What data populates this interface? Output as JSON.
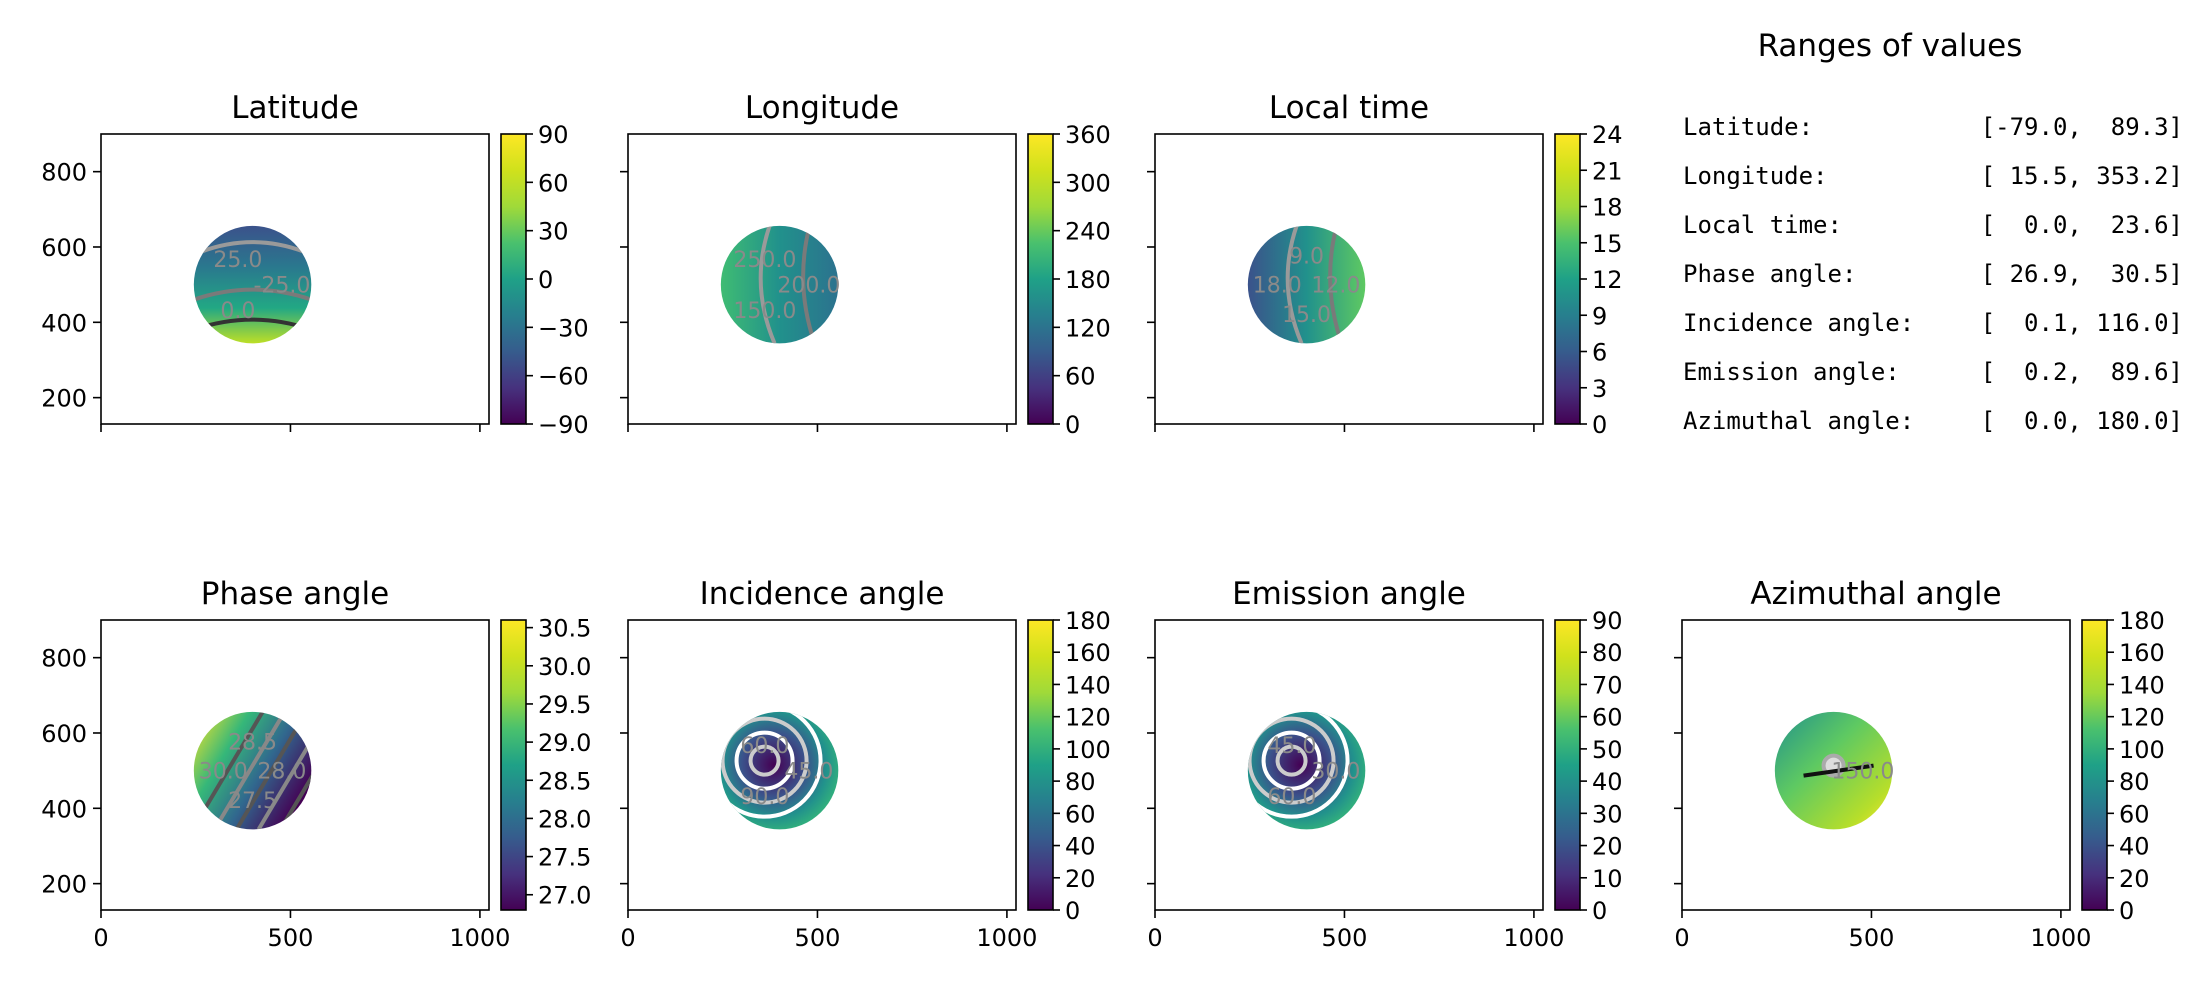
{
  "ranges": {
    "title": "Ranges of values",
    "rows": [
      {
        "label": "Latitude:",
        "value": "[-79.0,  89.3]"
      },
      {
        "label": "Longitude:",
        "value": "[ 15.5, 353.2]"
      },
      {
        "label": "Local time:",
        "value": "[  0.0,  23.6]"
      },
      {
        "label": "Phase angle:",
        "value": "[ 26.9,  30.5]"
      },
      {
        "label": "Incidence angle:",
        "value": "[  0.1, 116.0]"
      },
      {
        "label": "Emission angle:",
        "value": "[  0.2,  89.6]"
      },
      {
        "label": "Azimuthal angle:",
        "value": "[  0.0, 180.0]"
      }
    ]
  },
  "chart_data": [
    {
      "type": "heatmap",
      "title": "Latitude",
      "xlim": [
        0,
        1024
      ],
      "ylim": [
        130,
        900
      ],
      "xticks": [
        0,
        500,
        1000
      ],
      "yticks": [
        200,
        400,
        600,
        800
      ],
      "colormap": "viridis",
      "colorbar": {
        "range": [
          -90,
          90
        ],
        "ticks": [
          "90",
          "60",
          "30",
          "0",
          "−30",
          "−60",
          "−90"
        ]
      },
      "disk": {
        "cx": 400,
        "cy": 500,
        "r": 155
      },
      "contour_labels": [
        "-25.0",
        "0.0",
        "25.0"
      ]
    },
    {
      "type": "heatmap",
      "title": "Longitude",
      "xlim": [
        0,
        1024
      ],
      "ylim": [
        130,
        900
      ],
      "xticks": [
        0,
        500,
        1000
      ],
      "yticks": [
        200,
        400,
        600,
        800
      ],
      "colormap": "viridis",
      "colorbar": {
        "range": [
          0,
          360
        ],
        "ticks": [
          "360",
          "300",
          "240",
          "180",
          "120",
          "60",
          "0"
        ]
      },
      "disk": {
        "cx": 400,
        "cy": 500,
        "r": 155
      },
      "contour_labels": [
        "200.0",
        "150.0",
        "250.0"
      ]
    },
    {
      "type": "heatmap",
      "title": "Local time",
      "xlim": [
        0,
        1024
      ],
      "ylim": [
        130,
        900
      ],
      "xticks": [
        0,
        500,
        1000
      ],
      "yticks": [
        200,
        400,
        600,
        800
      ],
      "colormap": "viridis",
      "colorbar": {
        "range": [
          0,
          24
        ],
        "ticks": [
          "24",
          "21",
          "18",
          "15",
          "12",
          "9",
          "6",
          "3",
          "0"
        ]
      },
      "disk": {
        "cx": 400,
        "cy": 500,
        "r": 155
      },
      "contour_labels": [
        "12.0",
        "15.0",
        "18.0",
        "9.0"
      ]
    },
    {
      "type": "heatmap",
      "title": "Phase angle",
      "xlim": [
        0,
        1024
      ],
      "ylim": [
        130,
        900
      ],
      "xticks": [
        0,
        500,
        1000
      ],
      "yticks": [
        200,
        400,
        600,
        800
      ],
      "colormap": "viridis",
      "colorbar": {
        "range": [
          26.8,
          30.6
        ],
        "ticks": [
          "30.5",
          "30.0",
          "29.5",
          "29.0",
          "28.5",
          "28.0",
          "27.5",
          "27.0"
        ]
      },
      "disk": {
        "cx": 400,
        "cy": 500,
        "r": 155
      },
      "contour_labels": [
        "28.0",
        "27.5",
        "30.0",
        "28.5"
      ]
    },
    {
      "type": "heatmap",
      "title": "Incidence angle",
      "xlim": [
        0,
        1024
      ],
      "ylim": [
        130,
        900
      ],
      "xticks": [
        0,
        500,
        1000
      ],
      "yticks": [
        200,
        400,
        600,
        800
      ],
      "colormap": "viridis",
      "colorbar": {
        "range": [
          0,
          180
        ],
        "ticks": [
          "180",
          "160",
          "140",
          "120",
          "100",
          "80",
          "60",
          "40",
          "20",
          "0"
        ]
      },
      "disk": {
        "cx": 400,
        "cy": 500,
        "r": 155
      },
      "contour_labels": [
        "45.0",
        "90.0",
        "60.0"
      ]
    },
    {
      "type": "heatmap",
      "title": "Emission angle",
      "xlim": [
        0,
        1024
      ],
      "ylim": [
        130,
        900
      ],
      "xticks": [
        0,
        500,
        1000
      ],
      "yticks": [
        200,
        400,
        600,
        800
      ],
      "colormap": "viridis",
      "colorbar": {
        "range": [
          0,
          90
        ],
        "ticks": [
          "90",
          "80",
          "70",
          "60",
          "50",
          "40",
          "30",
          "20",
          "10",
          "0"
        ]
      },
      "disk": {
        "cx": 400,
        "cy": 500,
        "r": 155
      },
      "contour_labels": [
        "30.0",
        "60.0",
        "45.0"
      ]
    },
    {
      "type": "heatmap",
      "title": "Azimuthal angle",
      "xlim": [
        0,
        1024
      ],
      "ylim": [
        130,
        900
      ],
      "xticks": [
        0,
        500,
        1000
      ],
      "yticks": [
        200,
        400,
        600,
        800
      ],
      "colormap": "viridis",
      "colorbar": {
        "range": [
          0,
          180
        ],
        "ticks": [
          "180",
          "160",
          "140",
          "120",
          "100",
          "80",
          "60",
          "40",
          "20",
          "0"
        ]
      },
      "disk": {
        "cx": 400,
        "cy": 500,
        "r": 155
      },
      "contour_labels": [
        "150.0"
      ]
    }
  ]
}
